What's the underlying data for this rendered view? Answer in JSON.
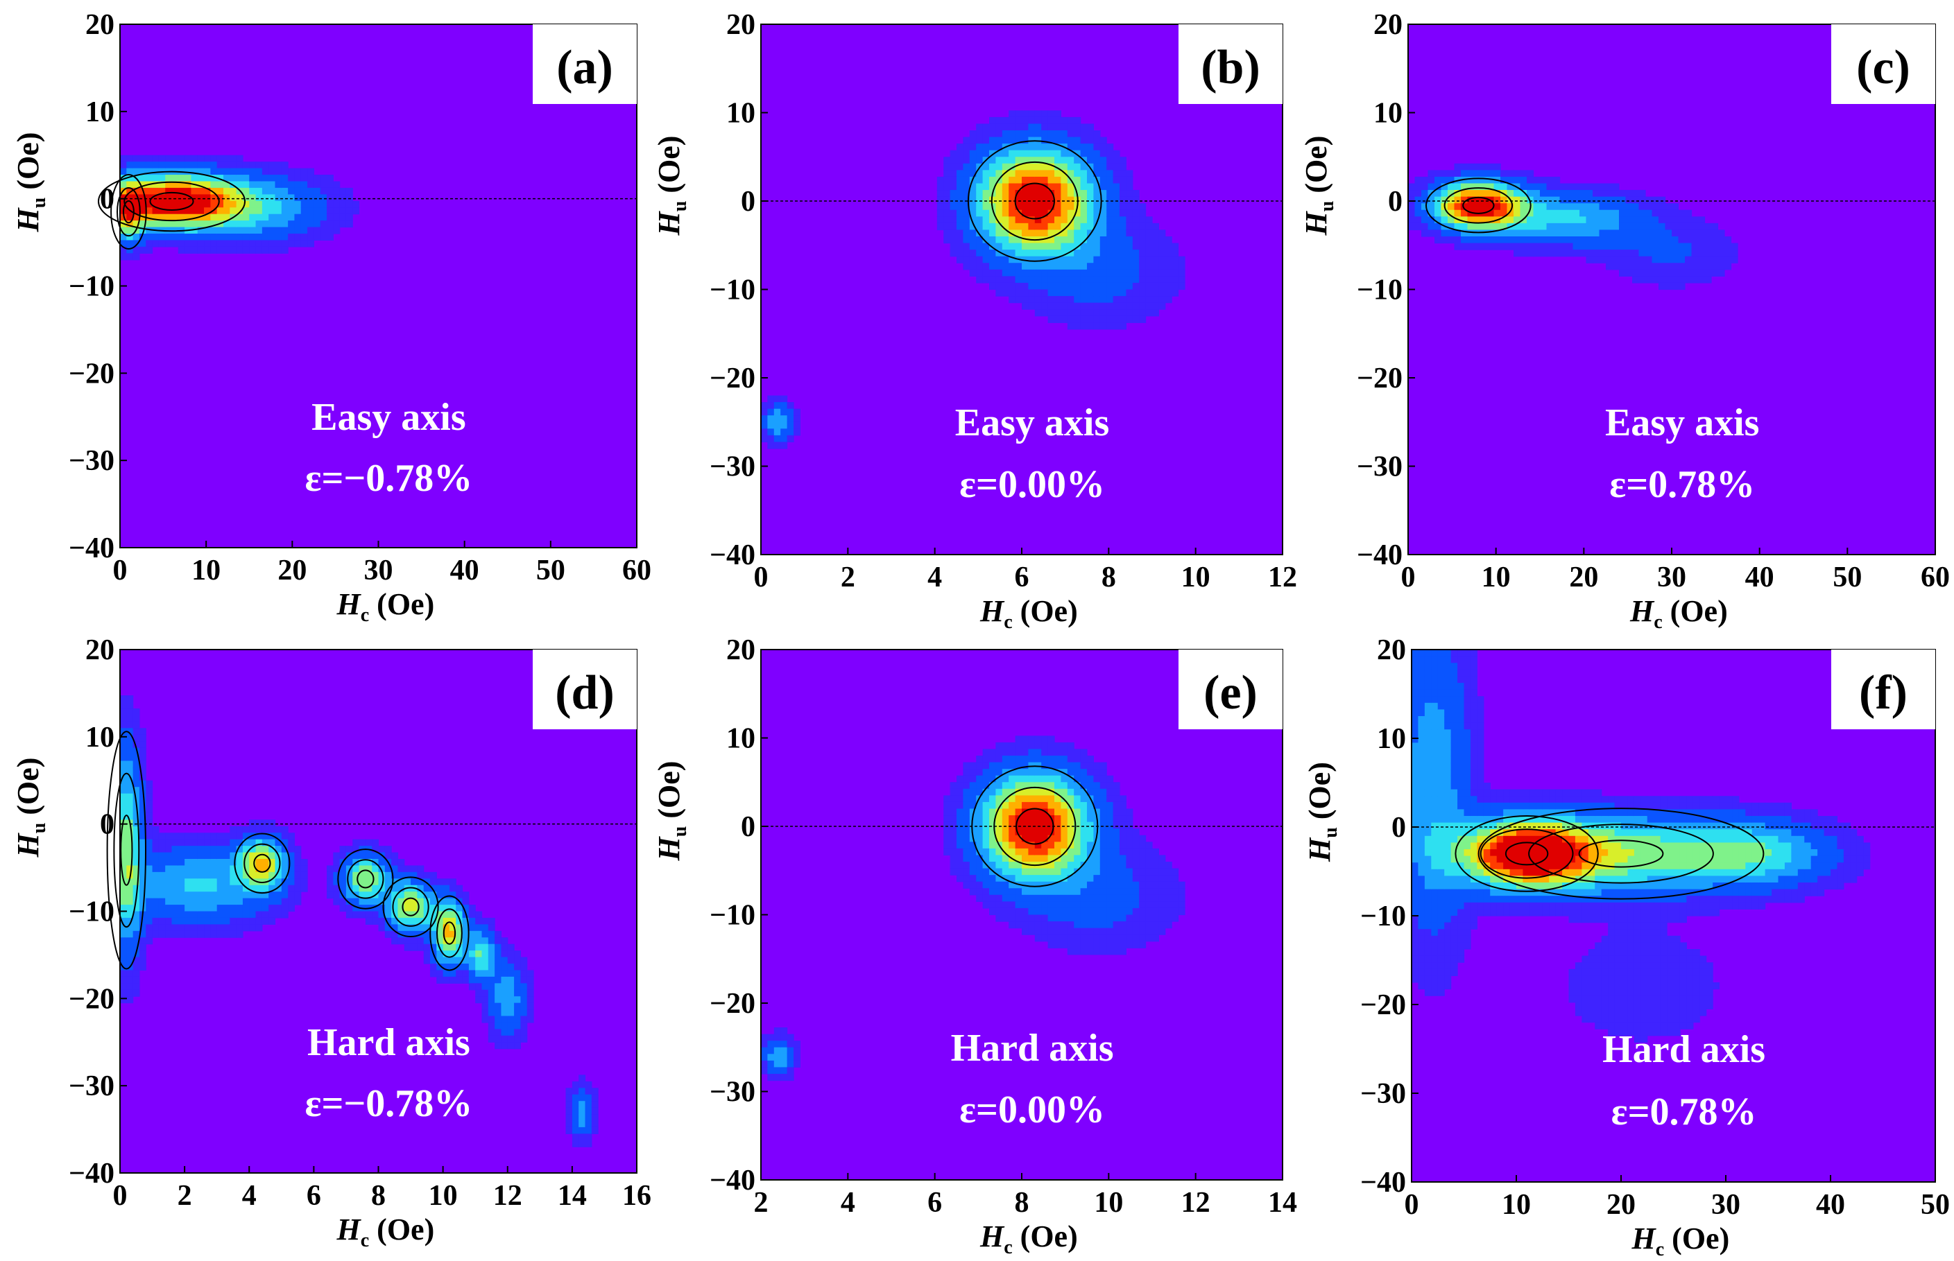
{
  "colors": {
    "background": "#7f00ff",
    "label_box": "#ffffff",
    "annotation_text": "#ffffff",
    "colormap": [
      "#7f00ff",
      "#3f23ff",
      "#0a55ff",
      "#1aa0ff",
      "#2ee0f0",
      "#7ff28a",
      "#d8ee2a",
      "#ffb000",
      "#ff3c00",
      "#e00000"
    ]
  },
  "chart_data": [
    {
      "id": "a",
      "type": "heatmap",
      "panel_label": "(a)",
      "xlabel": "H",
      "xlabel_sub": "c",
      "xlabel_unit": " (Oe)",
      "ylabel": "H",
      "ylabel_sub": "u",
      "ylabel_unit": " (Oe)",
      "xlim": [
        0,
        60
      ],
      "ylim": [
        -40,
        20
      ],
      "xticks": [
        "0",
        "10",
        "20",
        "30",
        "40",
        "50",
        "60"
      ],
      "yticks": [
        "20",
        "10",
        "0",
        "−10",
        "−20",
        "−30",
        "−40"
      ],
      "annotation_axis": "Easy axis",
      "annotation_strain": "ε=−0.78%",
      "peaks": [
        {
          "hc": 6,
          "hu": -0.3,
          "sx": 5.0,
          "sy": 2.0,
          "amp": 1.0
        },
        {
          "hc": 15,
          "hu": -1.0,
          "sx": 6.0,
          "sy": 2.5,
          "amp": 0.35
        },
        {
          "hc": 1,
          "hu": -1.5,
          "sx": 1.2,
          "sy": 2.5,
          "amp": 0.5
        }
      ]
    },
    {
      "id": "b",
      "type": "heatmap",
      "panel_label": "(b)",
      "xlabel": "H",
      "xlabel_sub": "c",
      "xlabel_unit": " (Oe)",
      "ylabel": "H",
      "ylabel_sub": "u",
      "ylabel_unit": " (Oe)",
      "xlim": [
        0,
        12
      ],
      "ylim": [
        -40,
        20
      ],
      "xticks": [
        "0",
        "2",
        "4",
        "6",
        "8",
        "10",
        "12"
      ],
      "yticks": [
        "20",
        "10",
        "0",
        "−10",
        "−20",
        "−30",
        "−40"
      ],
      "annotation_axis": "Easy axis",
      "annotation_strain": "ε=0.00%",
      "peaks": [
        {
          "hc": 6.3,
          "hu": 0.0,
          "sx": 0.9,
          "sy": 4.0,
          "amp": 1.0
        },
        {
          "hc": 7.8,
          "hu": -8.0,
          "sx": 1.2,
          "sy": 4.0,
          "amp": 0.15
        },
        {
          "hc": 0.4,
          "hu": -25.0,
          "sx": 0.25,
          "sy": 1.5,
          "amp": 0.3
        }
      ]
    },
    {
      "id": "c",
      "type": "heatmap",
      "panel_label": "(c)",
      "xlabel": "H",
      "xlabel_sub": "c",
      "xlabel_unit": " (Oe)",
      "ylabel": "H",
      "ylabel_sub": "u",
      "ylabel_unit": " (Oe)",
      "xlim": [
        0,
        60
      ],
      "ylim": [
        -40,
        20
      ],
      "xticks": [
        "0",
        "10",
        "20",
        "30",
        "40",
        "50",
        "60"
      ],
      "yticks": [
        "20",
        "10",
        "0",
        "−10",
        "−20",
        "−30",
        "−40"
      ],
      "annotation_axis": "Easy axis",
      "annotation_strain": "ε=0.78%",
      "peaks": [
        {
          "hc": 8,
          "hu": -0.5,
          "sx": 3.5,
          "sy": 1.8,
          "amp": 1.0
        },
        {
          "hc": 18,
          "hu": -2.0,
          "sx": 6.0,
          "sy": 2.0,
          "amp": 0.35
        },
        {
          "hc": 30,
          "hu": -6.0,
          "sx": 5.0,
          "sy": 2.5,
          "amp": 0.12
        }
      ]
    },
    {
      "id": "d",
      "type": "heatmap",
      "panel_label": "(d)",
      "xlabel": "H",
      "xlabel_sub": "c",
      "xlabel_unit": " (Oe)",
      "ylabel": "H",
      "ylabel_sub": "u",
      "ylabel_unit": " (Oe)",
      "xlim": [
        0,
        16
      ],
      "ylim": [
        -40,
        20
      ],
      "xticks": [
        "0",
        "2",
        "4",
        "6",
        "8",
        "10",
        "12",
        "14",
        "16"
      ],
      "yticks": [
        "20",
        "10",
        "0",
        "−10",
        "−20",
        "−30",
        "−40"
      ],
      "annotation_axis": "Hard axis",
      "annotation_strain": "ε=−0.78%",
      "peaks": [
        {
          "hc": 0.2,
          "hu": -3.0,
          "sx": 0.35,
          "sy": 8.0,
          "amp": 0.5
        },
        {
          "hc": 2.5,
          "hu": -7.0,
          "sx": 1.5,
          "sy": 3.0,
          "amp": 0.35
        },
        {
          "hc": 4.4,
          "hu": -4.5,
          "sx": 0.5,
          "sy": 2.0,
          "amp": 0.6
        },
        {
          "hc": 7.6,
          "hu": -6.3,
          "sx": 0.5,
          "sy": 2.0,
          "amp": 0.55
        },
        {
          "hc": 9.0,
          "hu": -9.5,
          "sx": 0.5,
          "sy": 2.0,
          "amp": 0.6
        },
        {
          "hc": 10.2,
          "hu": -12.5,
          "sx": 0.35,
          "sy": 2.5,
          "amp": 0.7
        },
        {
          "hc": 11.2,
          "hu": -15.0,
          "sx": 0.3,
          "sy": 2.0,
          "amp": 0.45
        },
        {
          "hc": 12.0,
          "hu": -20.0,
          "sx": 0.4,
          "sy": 3.0,
          "amp": 0.3
        },
        {
          "hc": 14.3,
          "hu": -33.0,
          "sx": 0.25,
          "sy": 2.0,
          "amp": 0.3
        }
      ]
    },
    {
      "id": "e",
      "type": "heatmap",
      "panel_label": "(e)",
      "xlabel": "H",
      "xlabel_sub": "c",
      "xlabel_unit": " (Oe)",
      "ylabel": "H",
      "ylabel_sub": "u",
      "ylabel_unit": " (Oe)",
      "xlim": [
        2,
        14
      ],
      "ylim": [
        -40,
        20
      ],
      "xticks": [
        "2",
        "4",
        "6",
        "8",
        "10",
        "12",
        "14"
      ],
      "yticks": [
        "20",
        "10",
        "0",
        "−10",
        "−20",
        "−30",
        "−40"
      ],
      "annotation_axis": "Hard axis",
      "annotation_strain": "ε=0.00%",
      "peaks": [
        {
          "hc": 8.3,
          "hu": 0.0,
          "sx": 0.85,
          "sy": 4.0,
          "amp": 1.0
        },
        {
          "hc": 9.8,
          "hu": -8.0,
          "sx": 1.2,
          "sy": 4.0,
          "amp": 0.15
        },
        {
          "hc": 2.4,
          "hu": -26.0,
          "sx": 0.25,
          "sy": 1.5,
          "amp": 0.3
        }
      ]
    },
    {
      "id": "f",
      "type": "heatmap",
      "panel_label": "(f)",
      "xlabel": "H",
      "xlabel_sub": "c",
      "xlabel_unit": " (Oe)",
      "ylabel": "H",
      "ylabel_sub": "u",
      "ylabel_unit": " (Oe)",
      "xlim": [
        0,
        50
      ],
      "ylim": [
        -40,
        20
      ],
      "xticks": [
        "0",
        "10",
        "20",
        "30",
        "40",
        "50"
      ],
      "yticks": [
        "20",
        "10",
        "0",
        "−10",
        "−20",
        "−30",
        "−40"
      ],
      "annotation_axis": "Hard axis",
      "annotation_strain": "ε=0.78%",
      "peaks": [
        {
          "hc": 11,
          "hu": -3.0,
          "sx": 4.0,
          "sy": 2.5,
          "amp": 1.0
        },
        {
          "hc": 20,
          "hu": -3.0,
          "sx": 8.0,
          "sy": 3.0,
          "amp": 0.5
        },
        {
          "hc": 33,
          "hu": -3.0,
          "sx": 5.0,
          "sy": 2.5,
          "amp": 0.35
        },
        {
          "hc": 2,
          "hu": 5.0,
          "sx": 2.5,
          "sy": 12.0,
          "amp": 0.3
        },
        {
          "hc": 22,
          "hu": -18.0,
          "sx": 6.0,
          "sy": 5.0,
          "amp": 0.08
        }
      ]
    }
  ]
}
